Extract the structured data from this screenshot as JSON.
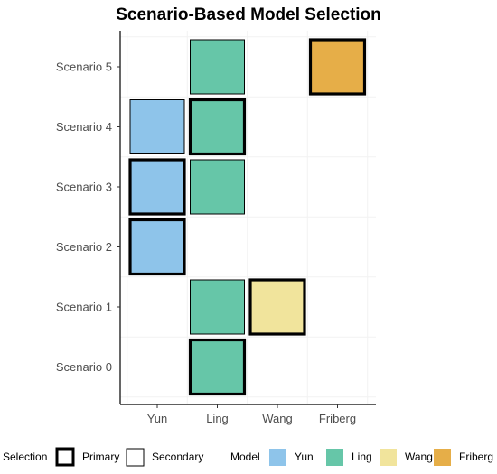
{
  "chart_data": {
    "type": "heatmap",
    "title": "Scenario-Based Model Selection",
    "xlabel": "",
    "ylabel": "",
    "x_categories": [
      "Yun",
      "Ling",
      "Wang",
      "Friberg"
    ],
    "y_categories": [
      "Scenario 0",
      "Scenario 1",
      "Scenario 2",
      "Scenario 3",
      "Scenario 4",
      "Scenario 5"
    ],
    "colors": {
      "Yun": "#8ec4ea",
      "Ling": "#66c6a8",
      "Wang": "#f1e49c",
      "Friberg": "#e6ae48"
    },
    "cells": [
      {
        "scenario": "Scenario 0",
        "model": "Ling",
        "selection": "Primary"
      },
      {
        "scenario": "Scenario 1",
        "model": "Ling",
        "selection": "Secondary"
      },
      {
        "scenario": "Scenario 1",
        "model": "Wang",
        "selection": "Primary"
      },
      {
        "scenario": "Scenario 2",
        "model": "Yun",
        "selection": "Primary"
      },
      {
        "scenario": "Scenario 3",
        "model": "Yun",
        "selection": "Primary"
      },
      {
        "scenario": "Scenario 3",
        "model": "Ling",
        "selection": "Secondary"
      },
      {
        "scenario": "Scenario 4",
        "model": "Yun",
        "selection": "Secondary"
      },
      {
        "scenario": "Scenario 4",
        "model": "Ling",
        "selection": "Primary"
      },
      {
        "scenario": "Scenario 5",
        "model": "Ling",
        "selection": "Secondary"
      },
      {
        "scenario": "Scenario 5",
        "model": "Friberg",
        "selection": "Primary"
      }
    ],
    "legend": {
      "placement": "bottom",
      "selection_title": "Selection",
      "selection_items": [
        "Primary",
        "Secondary"
      ],
      "model_title": "Model",
      "model_items": [
        "Yun",
        "Ling",
        "Wang",
        "Friberg"
      ]
    },
    "grid": true
  }
}
